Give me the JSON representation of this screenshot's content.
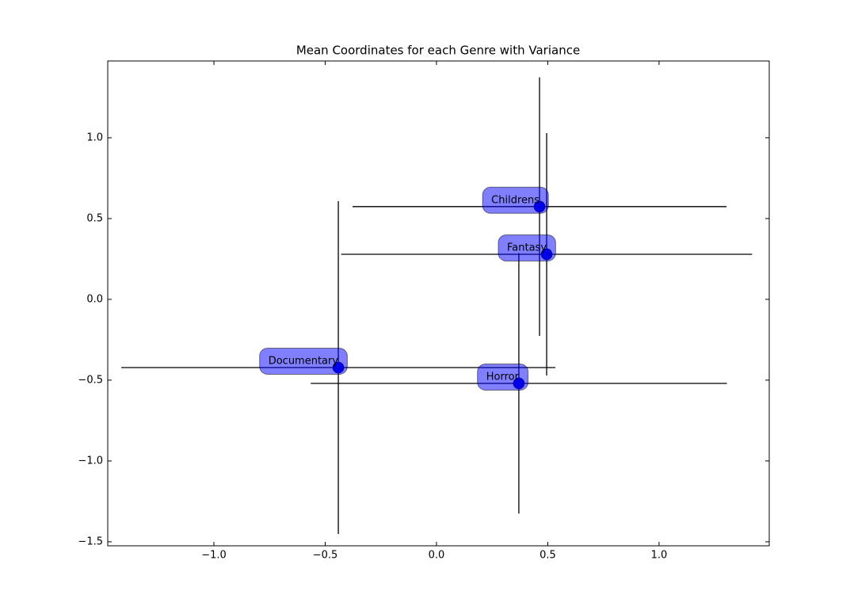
{
  "chart_data": {
    "type": "scatter",
    "title": "Mean Coordinates for each Genre with Variance",
    "xlim": [
      -1.477,
      1.495
    ],
    "ylim": [
      -1.525,
      1.475
    ],
    "xticks": [
      {
        "value": -1.0,
        "label": "−1.0"
      },
      {
        "value": -0.5,
        "label": "−0.5"
      },
      {
        "value": 0.0,
        "label": "0.0"
      },
      0.5,
      {
        "value": 1.0,
        "label": "1.0"
      }
    ],
    "yticks": [
      {
        "value": -1.5,
        "label": "−1.5"
      },
      {
        "value": -1.0,
        "label": "−1.0"
      },
      {
        "value": -0.5,
        "label": "−0.5"
      },
      {
        "value": 0.0,
        "label": "0.0"
      },
      0.5,
      {
        "value": 1.0,
        "label": "1.0"
      }
    ],
    "marker_color": "#0000cc",
    "box_color": "#0000ff",
    "points": [
      {
        "label": "Childrens",
        "x": 0.463,
        "y": 0.574,
        "xerr": 0.84,
        "yerr": 0.8
      },
      {
        "label": "Fantasy",
        "x": 0.495,
        "y": 0.279,
        "xerr": 0.923,
        "yerr": 0.75
      },
      {
        "label": "Documentary",
        "x": -0.441,
        "y": -0.422,
        "xerr": 0.975,
        "yerr": 1.03
      },
      {
        "label": "Horror",
        "x": 0.37,
        "y": -0.52,
        "xerr": 0.935,
        "yerr": 0.806
      }
    ]
  }
}
